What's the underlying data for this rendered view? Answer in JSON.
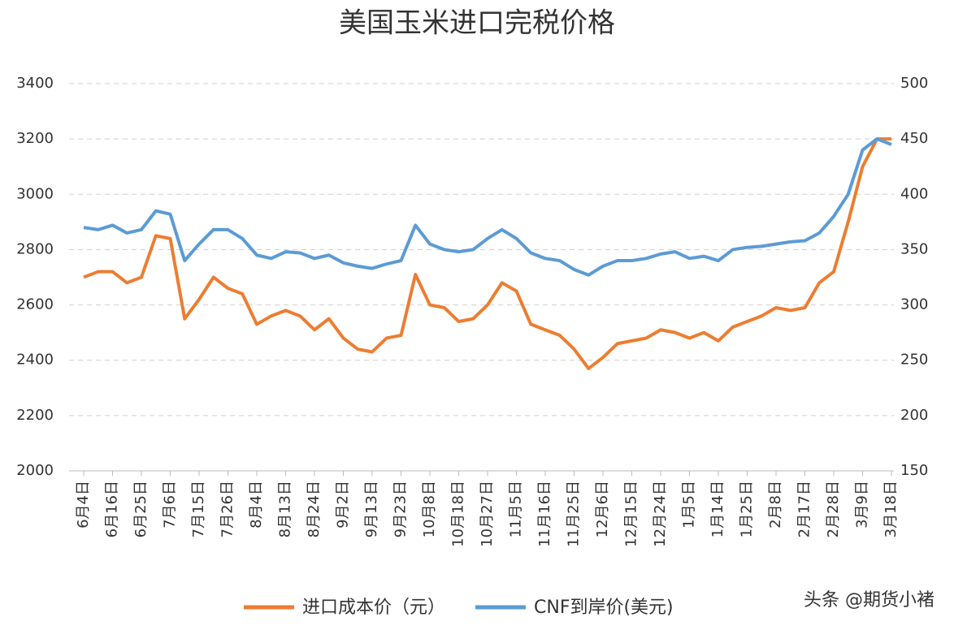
{
  "chart_data": {
    "type": "line",
    "title": "美国玉米进口完税价格",
    "categories": [
      "6月4日",
      null,
      "6月16日",
      null,
      "6月25日",
      null,
      "7月6日",
      null,
      "7月15日",
      null,
      "7月26日",
      null,
      "8月4日",
      null,
      "8月13日",
      null,
      "8月24日",
      null,
      "9月2日",
      null,
      "9月13日",
      null,
      "9月23日",
      null,
      "10月8日",
      null,
      "10月18日",
      null,
      "10月27日",
      null,
      "11月5日",
      null,
      "11月16日",
      null,
      "11月25日",
      null,
      "12月6日",
      null,
      "12月15日",
      null,
      "12月24日",
      null,
      "1月5日",
      null,
      "1月14日",
      null,
      "1月25日",
      null,
      "2月8日",
      null,
      "2月17日",
      null,
      "2月28日",
      null,
      "3月9日",
      null,
      "3月18日"
    ],
    "series": [
      {
        "name": "进口成本价（元）",
        "color": "#ed7d31",
        "axis": "y",
        "values": [
          2700,
          2720,
          2720,
          2680,
          2700,
          2850,
          2840,
          2550,
          2620,
          2700,
          2660,
          2640,
          2530,
          2560,
          2580,
          2560,
          2510,
          2550,
          2480,
          2440,
          2430,
          2480,
          2490,
          2710,
          2600,
          2590,
          2540,
          2550,
          2600,
          2680,
          2650,
          2530,
          2510,
          2490,
          2440,
          2370,
          2410,
          2460,
          2470,
          2480,
          2510,
          2500,
          2480,
          2500,
          2470,
          2520,
          2540,
          2560,
          2590,
          2580,
          2590,
          2680,
          2720,
          2900,
          3100,
          3200,
          3200
        ]
      },
      {
        "name": "CNF到岸价(美元)",
        "color": "#5b9bd5",
        "axis": "y2",
        "values": [
          370,
          368,
          372,
          365,
          368,
          385,
          382,
          340,
          355,
          368,
          368,
          360,
          345,
          342,
          348,
          347,
          342,
          345,
          338,
          335,
          333,
          337,
          340,
          372,
          355,
          350,
          348,
          350,
          360,
          368,
          360,
          347,
          342,
          340,
          332,
          327,
          335,
          340,
          340,
          342,
          346,
          348,
          342,
          344,
          340,
          350,
          352,
          353,
          355,
          357,
          358,
          365,
          380,
          400,
          440,
          450,
          445
        ]
      }
    ],
    "ylim": [
      2000,
      3400
    ],
    "yticks": [
      2000,
      2200,
      2400,
      2600,
      2800,
      3000,
      3200,
      3400
    ],
    "y2lim": [
      150,
      500
    ],
    "y2ticks": [
      150,
      200,
      250,
      300,
      350,
      400,
      450,
      500
    ],
    "grid": true,
    "legend": "bottom"
  },
  "watermark": "头条 @期货小褚"
}
